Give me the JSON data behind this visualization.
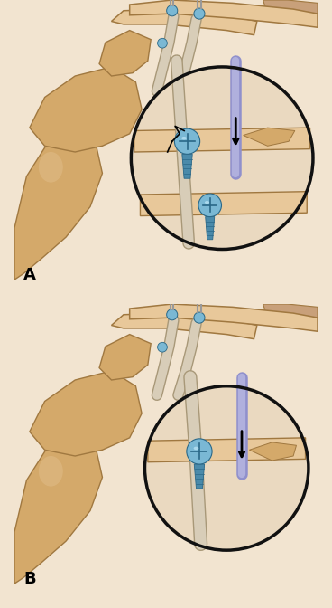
{
  "bg_color": "#f2e4d0",
  "border_color": "#c8a882",
  "bone_fill": "#d4a96a",
  "bone_edge": "#a07840",
  "bone_light": "#e8c89a",
  "bone_shadow": "#c09060",
  "screw_blue": "#7ab8d4",
  "screw_dark": "#4a8aaa",
  "screw_head": "#90c8e0",
  "graft_color": "#d8cdb8",
  "graft_edge": "#a89878",
  "purple_tool": "#9090cc",
  "purple_light": "#b0b0dd",
  "circle_edge": "#111111",
  "label_fontsize": 13,
  "fig_width": 3.68,
  "fig_height": 6.72
}
